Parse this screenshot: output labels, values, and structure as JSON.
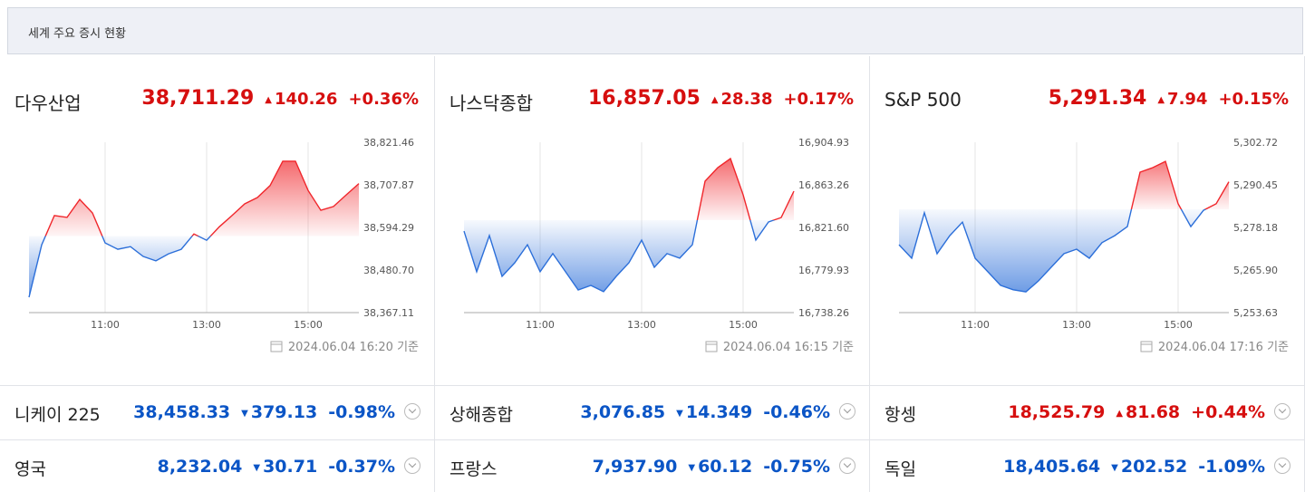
{
  "header": {
    "title": "세계 주요 증시 현황"
  },
  "colors": {
    "up": "#d60f0f",
    "down": "#0b55c6",
    "up_line": "#f0262b",
    "down_line": "#2c6fd9"
  },
  "main_indices": [
    {
      "name": "다우산업",
      "price": "38,711.29",
      "change": "140.26",
      "change_pct": "+0.36%",
      "direction": "up",
      "updated": "2024.06.04 16:20 기준",
      "chart": {
        "type": "line",
        "x": [
          9.5,
          9.75,
          10.0,
          10.25,
          10.5,
          10.75,
          11.0,
          11.25,
          11.5,
          11.75,
          12.0,
          12.25,
          12.5,
          12.75,
          13.0,
          13.25,
          13.5,
          13.75,
          14.0,
          14.25,
          14.5,
          14.75,
          15.0,
          15.25,
          15.5,
          15.75,
          16.0
        ],
        "values": [
          38408,
          38548,
          38626,
          38621,
          38669,
          38633,
          38553,
          38536,
          38543,
          38517,
          38505,
          38524,
          38536,
          38577,
          38560,
          38596,
          38626,
          38657,
          38674,
          38706,
          38771,
          38771,
          38693,
          38640,
          38650,
          38681,
          38711.29
        ],
        "baseline": 38571.03,
        "xlim": [
          9.5,
          16.0
        ],
        "ylim": [
          38367.11,
          38821.46
        ],
        "yticks": [
          {
            "value": 38821.46,
            "label": "38,821.46"
          },
          {
            "value": 38707.87,
            "label": "38,707.87"
          },
          {
            "value": 38594.29,
            "label": "38,594.29"
          },
          {
            "value": 38480.7,
            "label": "38,480.70"
          },
          {
            "value": 38367.11,
            "label": "38,367.11"
          }
        ],
        "xticks": [
          {
            "value": 11,
            "label": "11:00"
          },
          {
            "value": 13,
            "label": "13:00"
          },
          {
            "value": 15,
            "label": "15:00"
          }
        ]
      }
    },
    {
      "name": "나스닥종합",
      "price": "16,857.05",
      "change": "28.38",
      "change_pct": "+0.17%",
      "direction": "up",
      "updated": "2024.06.04 16:15 기준",
      "chart": {
        "type": "line",
        "x": [
          9.5,
          9.75,
          10.0,
          10.25,
          10.5,
          10.75,
          11.0,
          11.25,
          11.5,
          11.75,
          12.0,
          12.25,
          12.5,
          12.75,
          13.0,
          13.25,
          13.5,
          13.75,
          14.0,
          14.25,
          14.5,
          14.75,
          15.0,
          15.25,
          15.5,
          15.75,
          16.0
        ],
        "values": [
          16818.0,
          16778.2,
          16813.6,
          16773.7,
          16787.0,
          16804.7,
          16778.2,
          16796.0,
          16778.2,
          16760.4,
          16764.9,
          16758.7,
          16773.7,
          16787.0,
          16809.2,
          16782.6,
          16796.0,
          16791.5,
          16804.7,
          16866.8,
          16880.1,
          16889.0,
          16853.6,
          16809.2,
          16826.9,
          16831.3,
          16857.05
        ],
        "baseline": 16828.67,
        "xlim": [
          9.5,
          16.0
        ],
        "ylim": [
          16738.26,
          16904.93
        ],
        "yticks": [
          {
            "value": 16904.93,
            "label": "16,904.93"
          },
          {
            "value": 16863.26,
            "label": "16,863.26"
          },
          {
            "value": 16821.6,
            "label": "16,821.60"
          },
          {
            "value": 16779.93,
            "label": "16,779.93"
          },
          {
            "value": 16738.26,
            "label": "16,738.26"
          }
        ],
        "xticks": [
          {
            "value": 11,
            "label": "11:00"
          },
          {
            "value": 13,
            "label": "13:00"
          },
          {
            "value": 15,
            "label": "15:00"
          }
        ]
      }
    },
    {
      "name": "S&P 500",
      "price": "5,291.34",
      "change": "7.94",
      "change_pct": "+0.15%",
      "direction": "up",
      "updated": "2024.06.04 17:16 기준",
      "chart": {
        "type": "line",
        "x": [
          9.5,
          9.75,
          10.0,
          10.25,
          10.5,
          10.75,
          11.0,
          11.25,
          11.5,
          11.75,
          12.0,
          12.25,
          12.5,
          12.75,
          13.0,
          13.25,
          13.5,
          13.75,
          14.0,
          14.25,
          14.5,
          14.75,
          15.0,
          15.25,
          15.5,
          15.75,
          16.0
        ],
        "values": [
          5273.2,
          5269.3,
          5282.4,
          5270.6,
          5275.8,
          5279.7,
          5269.3,
          5265.4,
          5261.5,
          5260.2,
          5259.6,
          5262.8,
          5266.7,
          5270.6,
          5271.9,
          5269.3,
          5273.8,
          5275.8,
          5278.4,
          5294.1,
          5295.4,
          5297.2,
          5285.0,
          5278.4,
          5283.1,
          5285.0,
          5291.34
        ],
        "baseline": 5283.4,
        "xlim": [
          9.5,
          16.0
        ],
        "ylim": [
          5253.63,
          5302.72
        ],
        "yticks": [
          {
            "value": 5302.72,
            "label": "5,302.72"
          },
          {
            "value": 5290.45,
            "label": "5,290.45"
          },
          {
            "value": 5278.18,
            "label": "5,278.18"
          },
          {
            "value": 5265.9,
            "label": "5,265.90"
          },
          {
            "value": 5253.63,
            "label": "5,253.63"
          }
        ],
        "xticks": [
          {
            "value": 11,
            "label": "11:00"
          },
          {
            "value": 13,
            "label": "13:00"
          },
          {
            "value": 15,
            "label": "15:00"
          }
        ]
      }
    }
  ],
  "other_indices": [
    [
      {
        "name": "니케이 225",
        "price": "38,458.33",
        "change": "379.13",
        "change_pct": "-0.98%",
        "direction": "down"
      },
      {
        "name": "상해종합",
        "price": "3,076.85",
        "change": "14.349",
        "change_pct": "-0.46%",
        "direction": "down"
      },
      {
        "name": "항셍",
        "price": "18,525.79",
        "change": "81.68",
        "change_pct": "+0.44%",
        "direction": "up"
      }
    ],
    [
      {
        "name": "영국",
        "price": "8,232.04",
        "change": "30.71",
        "change_pct": "-0.37%",
        "direction": "down"
      },
      {
        "name": "프랑스",
        "price": "7,937.90",
        "change": "60.12",
        "change_pct": "-0.75%",
        "direction": "down"
      },
      {
        "name": "독일",
        "price": "18,405.64",
        "change": "202.52",
        "change_pct": "-1.09%",
        "direction": "down"
      }
    ]
  ]
}
